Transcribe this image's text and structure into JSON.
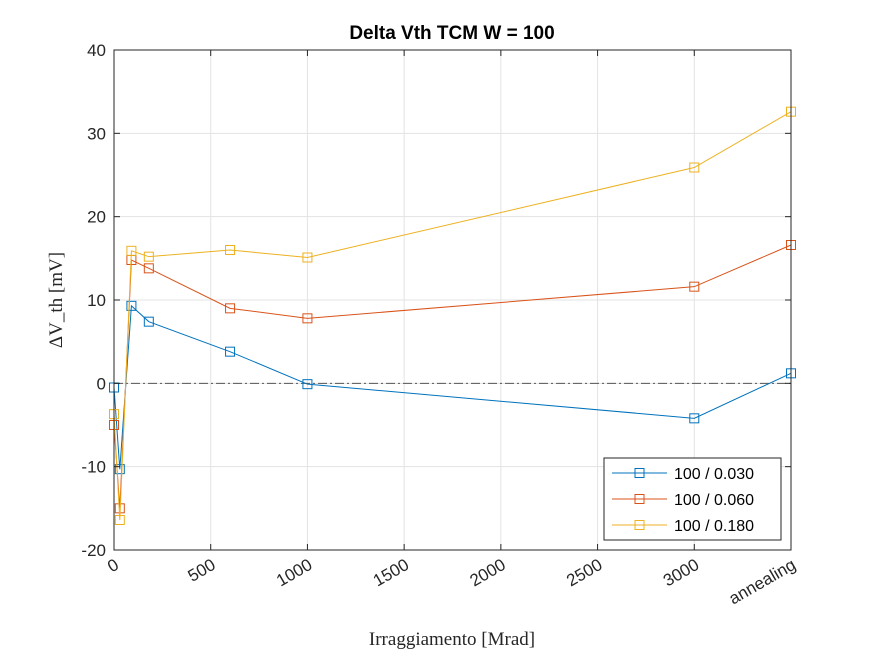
{
  "chart_data": {
    "type": "line",
    "title": "Delta Vth TCM W = 100",
    "xlabel": "Irraggiamento [Mrad]",
    "ylabel": "ΔV_th [mV]",
    "xlim": [
      0,
      3500
    ],
    "ylim": [
      -20,
      40
    ],
    "x_ticks": [
      0,
      500,
      1000,
      1500,
      2000,
      2500,
      3000,
      3500
    ],
    "x_tick_labels": [
      "0",
      "500",
      "1000",
      "1500",
      "2000",
      "2500",
      "3000",
      "annealing"
    ],
    "y_ticks": [
      -20,
      -10,
      0,
      10,
      20,
      30,
      40
    ],
    "y_tick_labels": [
      "-20",
      "-10",
      "0",
      "10",
      "20",
      "30",
      "40"
    ],
    "grid": true,
    "legend_position": "bottom-right",
    "x": [
      0,
      30,
      90,
      180,
      600,
      1000,
      3000,
      3500
    ],
    "series": [
      {
        "name": "100 / 0.030",
        "color": "#0072BD",
        "values": [
          -0.5,
          -10.3,
          9.3,
          7.4,
          3.8,
          -0.1,
          -4.2,
          1.2
        ]
      },
      {
        "name": "100 / 0.060",
        "color": "#D95319",
        "values": [
          -5.0,
          -15.0,
          14.8,
          13.8,
          9.0,
          7.8,
          11.6,
          16.6
        ]
      },
      {
        "name": "100 / 0.180",
        "color": "#EDB120",
        "values": [
          -3.7,
          -16.4,
          15.9,
          15.2,
          16.0,
          15.1,
          25.9,
          32.6
        ]
      }
    ],
    "reference_line": {
      "y": 0,
      "style": "dash-dot",
      "color": "#000000"
    },
    "marker": "square"
  }
}
